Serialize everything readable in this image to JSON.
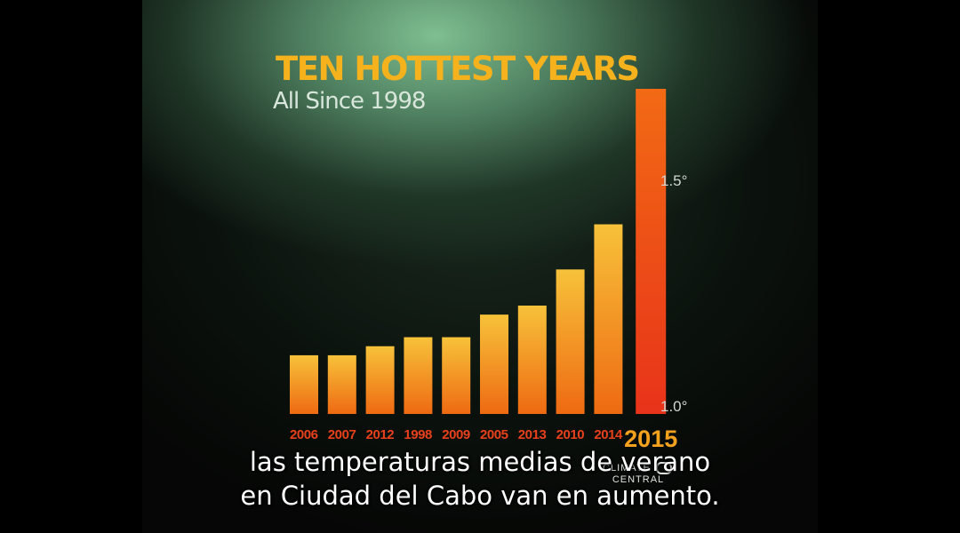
{
  "chart_data": {
    "type": "bar",
    "title": "TEN HOTTEST YEARS",
    "subtitle": "All Since 1998",
    "categories": [
      "2006",
      "2007",
      "2012",
      "1998",
      "2009",
      "2005",
      "2013",
      "2010",
      "2014",
      "2015"
    ],
    "values": [
      1.13,
      1.13,
      1.15,
      1.17,
      1.17,
      1.22,
      1.24,
      1.32,
      1.42,
      1.72
    ],
    "ylim": [
      1.0,
      1.72
    ],
    "yticks": [
      {
        "value": 1.0,
        "label": "1.0°"
      },
      {
        "value": 1.5,
        "label": "1.5°"
      }
    ],
    "highlight_category": "2015",
    "colors": {
      "bar_top": "#f7c23a",
      "bar_bottom": "#ee6a12",
      "highlight_top": "#f26a14",
      "highlight_bottom": "#e8331a",
      "title": "#f6b21c",
      "xtick": "#e8401b"
    }
  },
  "logo": {
    "left_text": "CLIMATE",
    "right_text": "CENTRAL"
  },
  "subtitles": {
    "line1": "las temperaturas medias de verano",
    "line2": "en Ciudad del Cabo van en aumento."
  }
}
